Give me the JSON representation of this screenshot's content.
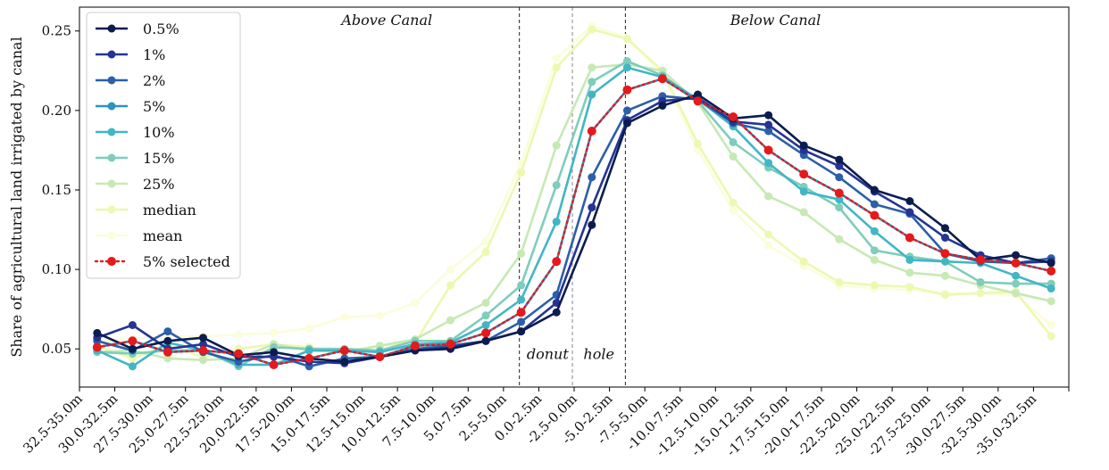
{
  "chart_data": {
    "type": "line",
    "ylabel": "Share of agricultural land irrigated by canal",
    "xlabel": "",
    "ylim": [
      0.026,
      0.265
    ],
    "yticks": [
      0.05,
      0.1,
      0.15,
      0.2,
      0.25
    ],
    "ytick_labels": [
      "0.05",
      "0.10",
      "0.15",
      "0.20",
      "0.25"
    ],
    "grid": false,
    "legend_position": "top-left",
    "categories": [
      "32.5-35.0m",
      "30.0-32.5m",
      "27.5-30.0m",
      "25.0-27.5m",
      "22.5-25.0m",
      "20.0-22.5m",
      "17.5-20.0m",
      "15.0-17.5m",
      "12.5-15.0m",
      "10.0-12.5m",
      "7.5-10.0m",
      "5.0-7.5m",
      "2.5-5.0m",
      "0.0-2.5m",
      "-2.5-0.0m",
      "-5.0-2.5m",
      "-7.5-5.0m",
      "-10.0-7.5m",
      "-12.5-10.0m",
      "-15.0-12.5m",
      "-17.5-15.0m",
      "-20.0-17.5m",
      "-22.5-20.0m",
      "-25.0-22.5m",
      "-27.5-25.0m",
      "-30.0-27.5m",
      "-32.5-30.0m",
      "-35.0-32.5m"
    ],
    "series": [
      {
        "name": "0.5%",
        "color": "#0b1d4f",
        "style": "solid",
        "values": [
          0.06,
          0.05,
          0.055,
          0.057,
          0.046,
          0.048,
          0.044,
          0.042,
          0.045,
          0.049,
          0.05,
          0.055,
          0.061,
          0.073,
          0.128,
          0.192,
          0.203,
          0.21,
          0.195,
          0.197,
          0.178,
          0.169,
          0.15,
          0.143,
          0.126,
          0.106,
          0.109,
          0.104
        ]
      },
      {
        "name": "1%",
        "color": "#253494",
        "style": "solid",
        "values": [
          0.057,
          0.065,
          0.05,
          0.053,
          0.045,
          0.045,
          0.042,
          0.041,
          0.045,
          0.049,
          0.051,
          0.055,
          0.061,
          0.079,
          0.139,
          0.194,
          0.206,
          0.208,
          0.193,
          0.191,
          0.175,
          0.165,
          0.149,
          0.136,
          0.12,
          0.109,
          0.104,
          0.105
        ]
      },
      {
        "name": "2%",
        "color": "#2c5fa8",
        "style": "solid",
        "values": [
          0.055,
          0.049,
          0.061,
          0.048,
          0.042,
          0.046,
          0.039,
          0.044,
          0.045,
          0.05,
          0.052,
          0.055,
          0.067,
          0.084,
          0.158,
          0.2,
          0.209,
          0.207,
          0.192,
          0.187,
          0.172,
          0.158,
          0.141,
          0.135,
          0.11,
          0.105,
          0.104,
          0.107
        ]
      },
      {
        "name": "5%",
        "color": "#2b92c4",
        "style": "solid",
        "values": [
          0.051,
          0.055,
          0.048,
          0.049,
          0.047,
          0.04,
          0.044,
          0.049,
          0.045,
          0.052,
          0.053,
          0.06,
          0.073,
          0.105,
          0.187,
          0.213,
          0.22,
          0.206,
          0.196,
          0.175,
          0.16,
          0.148,
          0.134,
          0.12,
          0.11,
          0.106,
          0.104,
          0.099
        ]
      },
      {
        "name": "10%",
        "color": "#41b6c4",
        "style": "solid",
        "values": [
          0.049,
          0.039,
          0.054,
          0.049,
          0.04,
          0.04,
          0.049,
          0.049,
          0.048,
          0.053,
          0.054,
          0.065,
          0.081,
          0.13,
          0.21,
          0.227,
          0.221,
          0.207,
          0.19,
          0.167,
          0.149,
          0.144,
          0.124,
          0.106,
          0.105,
          0.104,
          0.096,
          0.088
        ]
      },
      {
        "name": "15%",
        "color": "#7fcdbb",
        "style": "solid",
        "values": [
          0.048,
          0.047,
          0.049,
          0.049,
          0.039,
          0.051,
          0.05,
          0.05,
          0.049,
          0.055,
          0.055,
          0.071,
          0.09,
          0.153,
          0.218,
          0.231,
          0.222,
          0.206,
          0.18,
          0.164,
          0.152,
          0.139,
          0.112,
          0.108,
          0.105,
          0.092,
          0.091,
          0.091
        ]
      },
      {
        "name": "25%",
        "color": "#c7e9b4",
        "style": "solid",
        "values": [
          0.048,
          0.049,
          0.044,
          0.043,
          0.044,
          0.053,
          0.049,
          0.048,
          0.052,
          0.056,
          0.068,
          0.079,
          0.11,
          0.178,
          0.227,
          0.229,
          0.225,
          0.205,
          0.171,
          0.146,
          0.136,
          0.119,
          0.106,
          0.098,
          0.096,
          0.09,
          0.085,
          0.08
        ]
      },
      {
        "name": "median",
        "color": "#edf8b1",
        "style": "solid",
        "values": [
          0.052,
          0.044,
          0.052,
          0.045,
          0.05,
          0.053,
          0.051,
          0.048,
          0.052,
          0.054,
          0.09,
          0.111,
          0.161,
          0.227,
          0.251,
          0.245,
          0.225,
          0.179,
          0.142,
          0.122,
          0.105,
          0.092,
          0.09,
          0.089,
          0.084,
          0.085,
          0.086,
          0.058
        ]
      },
      {
        "name": "mean",
        "color": "#fbfddb",
        "style": "solid",
        "values": [
          0.055,
          0.056,
          0.058,
          0.058,
          0.059,
          0.06,
          0.063,
          0.07,
          0.071,
          0.079,
          0.1,
          0.118,
          0.167,
          0.233,
          0.253,
          0.246,
          0.223,
          0.175,
          0.137,
          0.115,
          0.102,
          0.09,
          0.088,
          0.087,
          0.085,
          0.085,
          0.084,
          0.065
        ]
      },
      {
        "name": "5% selected",
        "color": "#e41a1c",
        "style": "dotted",
        "values": [
          0.051,
          0.055,
          0.048,
          0.049,
          0.047,
          0.04,
          0.044,
          0.049,
          0.045,
          0.052,
          0.053,
          0.06,
          0.073,
          0.105,
          0.187,
          0.213,
          0.22,
          0.206,
          0.196,
          0.175,
          0.16,
          0.148,
          0.134,
          0.12,
          0.11,
          0.106,
          0.104,
          0.099
        ]
      }
    ],
    "vlines": [
      {
        "x_between": [
          "5.0-7.5m",
          "2.5-5.0m"
        ],
        "x_index": 11.95,
        "style": "dashed",
        "color": "#222222"
      },
      {
        "x_between": [
          "0.0-2.5m",
          "-2.5-0.0m"
        ],
        "x_index": 13.45,
        "style": "dashed",
        "color": "#888888"
      },
      {
        "x_between": [
          "-5.0-2.5m",
          "-7.5-5.0m"
        ],
        "x_index": 14.95,
        "style": "dashed",
        "color": "#222222"
      }
    ],
    "annotations": [
      {
        "text": "Above Canal",
        "x_index": 8.2,
        "y": 0.2565
      },
      {
        "text": "Below Canal",
        "x_index": 19.2,
        "y": 0.2565
      },
      {
        "text": "donut",
        "x_index": 12.75,
        "y": 0.0465
      },
      {
        "text": "hole",
        "x_index": 14.2,
        "y": 0.0465
      }
    ]
  }
}
